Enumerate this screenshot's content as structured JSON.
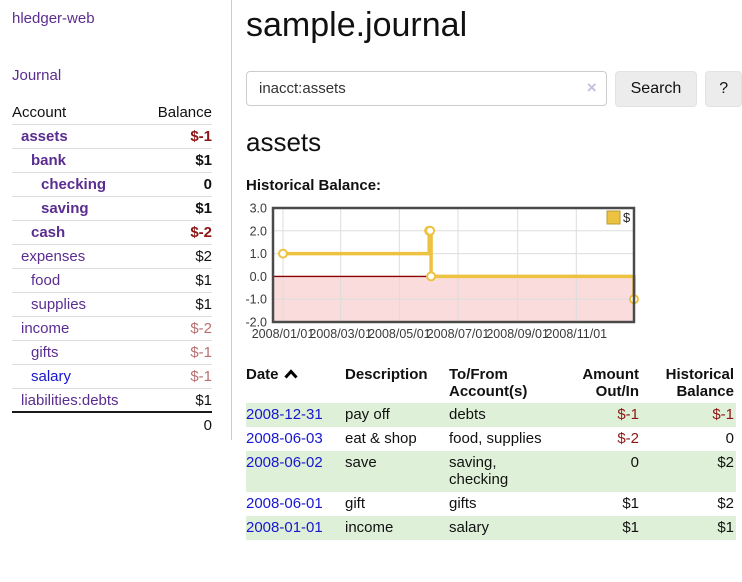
{
  "app": {
    "brand": "hledger-web",
    "nav_journal": "Journal"
  },
  "colors": {
    "link_purple": "#5b2d90",
    "link_blue": "#1717cf",
    "negative_strong": "#8d1515",
    "negative_soft": "#b96f6f",
    "row_stripe_green": "#dff0d8",
    "chart_line_gold": "#edc240",
    "chart_negative_fill": "#fadcdc",
    "chart_zero_line": "#8b0000",
    "chart_border": "#4a4a4a",
    "chart_grid": "#dddddd"
  },
  "sidebar": {
    "header": {
      "account": "Account",
      "balance": "Balance"
    },
    "accounts": [
      {
        "name": "assets",
        "depth": 1,
        "bold": true,
        "balance": "$-1",
        "bal_style": "neg-strong",
        "link": "purple"
      },
      {
        "name": "bank",
        "depth": 2,
        "bold": true,
        "balance": "$1",
        "bal_style": "norm",
        "link": "purple"
      },
      {
        "name": "checking",
        "depth": 3,
        "bold": true,
        "balance": "0",
        "bal_style": "norm",
        "link": "purple"
      },
      {
        "name": "saving",
        "depth": 3,
        "bold": true,
        "balance": "$1",
        "bal_style": "norm",
        "link": "purple"
      },
      {
        "name": "cash",
        "depth": 2,
        "bold": true,
        "balance": "$-2",
        "bal_style": "neg-strong",
        "link": "purple"
      },
      {
        "name": "expenses",
        "depth": 1,
        "bold": false,
        "balance": "$2",
        "bal_style": "norm",
        "link": "purple"
      },
      {
        "name": "food",
        "depth": 2,
        "bold": false,
        "balance": "$1",
        "bal_style": "norm",
        "link": "purple"
      },
      {
        "name": "supplies",
        "depth": 2,
        "bold": false,
        "balance": "$1",
        "bal_style": "norm",
        "link": "purple"
      },
      {
        "name": "income",
        "depth": 1,
        "bold": false,
        "balance": "$-2",
        "bal_style": "neg-soft",
        "link": "purple"
      },
      {
        "name": "gifts",
        "depth": 2,
        "bold": false,
        "balance": "$-1",
        "bal_style": "neg-soft",
        "link": "purple"
      },
      {
        "name": "salary",
        "depth": 2,
        "bold": false,
        "balance": "$-1",
        "bal_style": "neg-soft",
        "link": "blue"
      },
      {
        "name": "liabilities:debts",
        "depth": 1,
        "bold": false,
        "balance": "$1",
        "bal_style": "norm",
        "link": "purple"
      }
    ],
    "total": "0"
  },
  "main": {
    "title": "sample.journal",
    "search": {
      "value": "inacct:assets",
      "clear_icon": "×",
      "button": "Search",
      "help_button": "?"
    },
    "section_title": "assets",
    "chart_label": "Historical Balance:"
  },
  "chart_data": {
    "type": "line",
    "step": true,
    "x_start": "2008-01-01",
    "x_end": "2008-12-31",
    "ylim": [
      -2,
      3
    ],
    "yticks": [
      {
        "label": "3.0",
        "value": 3
      },
      {
        "label": "2.0",
        "value": 2
      },
      {
        "label": "1.0",
        "value": 1
      },
      {
        "label": "0.0",
        "value": 0
      },
      {
        "label": "-1.0",
        "value": -1
      },
      {
        "label": "-2.0",
        "value": -2
      }
    ],
    "xticks": [
      {
        "label": "2008/01/01",
        "date": "2008-01-01"
      },
      {
        "label": "2008/03/01",
        "date": "2008-03-01"
      },
      {
        "label": "2008/05/01",
        "date": "2008-05-01"
      },
      {
        "label": "2008/07/01",
        "date": "2008-07-01"
      },
      {
        "label": "2008/09/01",
        "date": "2008-09-01"
      },
      {
        "label": "2008/11/01",
        "date": "2008-11-01"
      }
    ],
    "series": [
      {
        "name": "$",
        "color": "#edc240",
        "points": [
          [
            "2008-01-01",
            1
          ],
          [
            "2008-06-01",
            2
          ],
          [
            "2008-06-02",
            2
          ],
          [
            "2008-06-03",
            0
          ],
          [
            "2008-12-31",
            -1
          ]
        ]
      }
    ]
  },
  "register": {
    "headers": {
      "date": "Date",
      "description": "Description",
      "accounts": "To/From Account(s)",
      "amount": "Amount Out/In",
      "balance": "Historical Balance"
    },
    "rows": [
      {
        "date": "2008-12-31",
        "description": "pay off",
        "accounts": "debts",
        "amount": "$-1",
        "amount_neg": true,
        "balance": "$-1",
        "balance_neg": true
      },
      {
        "date": "2008-06-03",
        "description": "eat & shop",
        "accounts": "food, supplies",
        "amount": "$-2",
        "amount_neg": true,
        "balance": "0",
        "balance_neg": false
      },
      {
        "date": "2008-06-02",
        "description": "save",
        "accounts": "saving, checking",
        "amount": "0",
        "amount_neg": false,
        "balance": "$2",
        "balance_neg": false
      },
      {
        "date": "2008-06-01",
        "description": "gift",
        "accounts": "gifts",
        "amount": "$1",
        "amount_neg": false,
        "balance": "$2",
        "balance_neg": false
      },
      {
        "date": "2008-01-01",
        "description": "income",
        "accounts": "salary",
        "amount": "$1",
        "amount_neg": false,
        "balance": "$1",
        "balance_neg": false
      }
    ]
  }
}
